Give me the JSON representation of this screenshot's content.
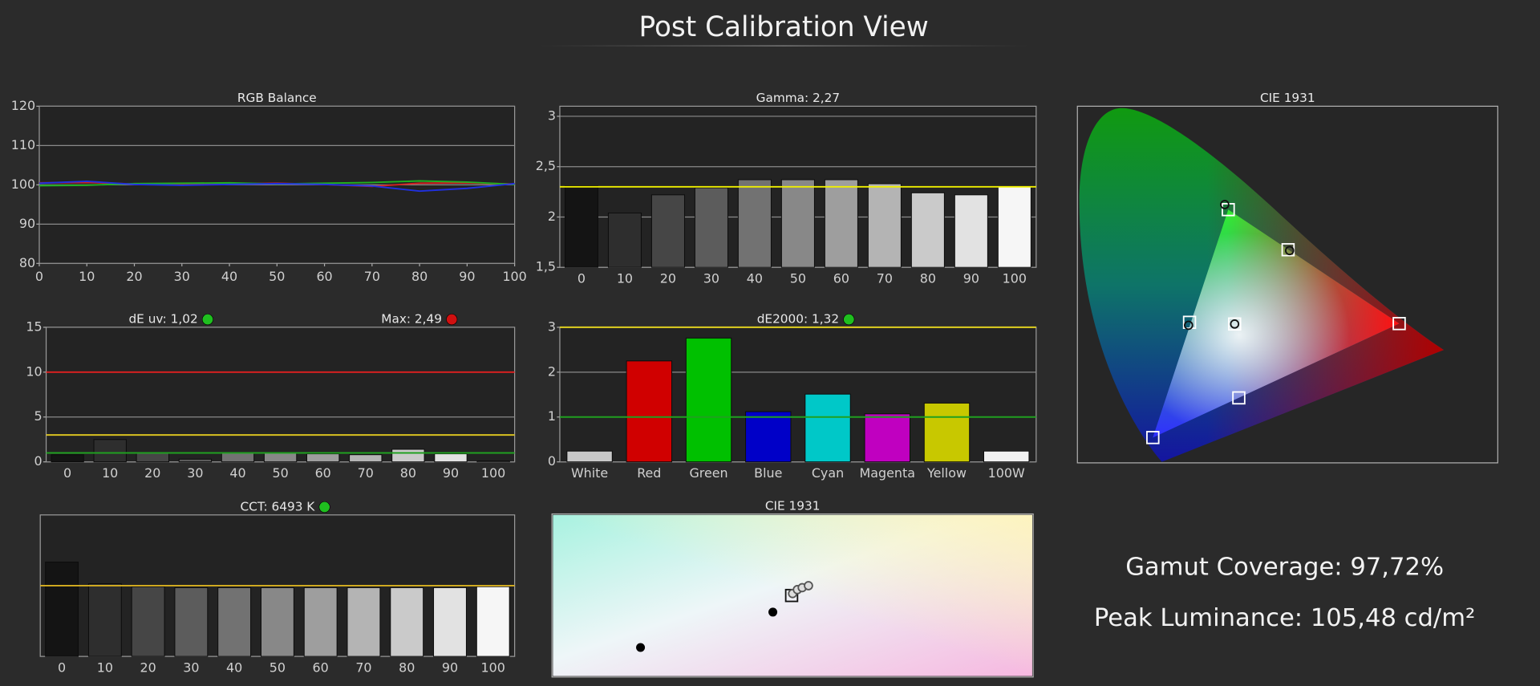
{
  "title": "Post Calibration View",
  "chart_data": [
    {
      "type": "line",
      "title": "RGB Balance",
      "x": [
        0,
        10,
        20,
        30,
        40,
        50,
        60,
        70,
        80,
        90,
        100
      ],
      "xlim": [
        0,
        100
      ],
      "xticks": [
        0,
        10,
        20,
        30,
        40,
        50,
        60,
        70,
        80,
        90,
        100
      ],
      "ylim": [
        80,
        120
      ],
      "yticks": [
        80,
        90,
        100,
        110,
        120
      ],
      "grid": true,
      "series": [
        {
          "color": "#d42020",
          "values": [
            100.5,
            100.6,
            100.2,
            100.1,
            100.2,
            100.4,
            100.1,
            99.6,
            100.4,
            100.5,
            100.2
          ]
        },
        {
          "color": "#20b020",
          "values": [
            99.8,
            99.9,
            100.3,
            100.4,
            100.5,
            100.2,
            100.4,
            100.6,
            101.0,
            100.7,
            100.1
          ]
        },
        {
          "color": "#2030e0",
          "values": [
            100.4,
            100.9,
            100.1,
            99.9,
            100.1,
            100.3,
            100.1,
            99.7,
            98.4,
            99.1,
            100.3
          ]
        }
      ]
    },
    {
      "type": "bar",
      "title": "Gamma: 2,27",
      "x": [
        0,
        10,
        20,
        30,
        40,
        50,
        60,
        70,
        80,
        90,
        100
      ],
      "xlim": [
        -5,
        105
      ],
      "values": [
        2.31,
        2.04,
        2.22,
        2.29,
        2.37,
        2.37,
        2.37,
        2.33,
        2.24,
        2.22,
        2.3
      ],
      "colors": [
        "#141414",
        "#2e2e2e",
        "#464646",
        "#5c5c5c",
        "#727272",
        "#888888",
        "#9e9e9e",
        "#b4b4b4",
        "#cacaca",
        "#e2e2e2",
        "#f6f6f6"
      ],
      "ylim": [
        1.5,
        3.1
      ],
      "yticks": [
        {
          "value": 1.5,
          "label": "1,5"
        },
        2,
        {
          "value": 2.5,
          "label": "2,5"
        },
        3
      ],
      "grid": true,
      "reference_lines": [
        {
          "value": 2.3,
          "color": "#f0f000"
        }
      ]
    },
    {
      "type": "bar",
      "title": "dE uv:  1,02",
      "title_status_color": "#1fbf1f",
      "annotation": "Max: 2,49",
      "annotation_status_color": "#d01010",
      "x": [
        0,
        10,
        20,
        30,
        40,
        50,
        60,
        70,
        80,
        90,
        100
      ],
      "xlim": [
        -5,
        105
      ],
      "values": [
        0.8,
        2.49,
        1.0,
        0.3,
        1.0,
        1.0,
        0.9,
        0.8,
        1.4,
        0.9,
        0.1
      ],
      "colors": [
        "#141414",
        "#2e2e2e",
        "#464646",
        "#5c5c5c",
        "#727272",
        "#888888",
        "#9e9e9e",
        "#b4b4b4",
        "#cacaca",
        "#e2e2e2",
        "#f6f6f6"
      ],
      "ylim": [
        0,
        15
      ],
      "yticks": [
        0,
        5,
        10,
        15
      ],
      "grid": true,
      "reference_lines": [
        {
          "value": 10,
          "color": "#e02020"
        },
        {
          "value": 3,
          "color": "#d8c020"
        },
        {
          "value": 1,
          "color": "#20a020"
        }
      ]
    },
    {
      "type": "bar",
      "title": "dE2000: 1,32",
      "title_status_color": "#1fbf1f",
      "categories": [
        "White",
        "Red",
        "Green",
        "Blue",
        "Cyan",
        "Magenta",
        "Yellow",
        "100W"
      ],
      "values": [
        0.24,
        2.25,
        2.76,
        1.12,
        1.51,
        1.07,
        1.31,
        0.24
      ],
      "colors": [
        "#c8c8c8",
        "#d00000",
        "#00c000",
        "#0000c8",
        "#00c8c8",
        "#c000c0",
        "#c8c800",
        "#f0f0f0"
      ],
      "ylim": [
        0,
        3
      ],
      "yticks": [
        0,
        1,
        2,
        3
      ],
      "grid": true,
      "reference_lines": [
        {
          "value": 3,
          "color": "#e0d020"
        },
        {
          "value": 1,
          "color": "#20a020"
        }
      ]
    },
    {
      "type": "bar",
      "title": "CCT: 6493 K",
      "title_status_color": "#1fbf1f",
      "x": [
        0,
        10,
        20,
        30,
        40,
        50,
        60,
        70,
        80,
        90,
        100
      ],
      "xlim": [
        -5,
        105
      ],
      "values": [
        7000,
        6542,
        6479,
        6458,
        6458,
        6458,
        6458,
        6458,
        6458,
        6458,
        6479
      ],
      "colors": [
        "#141414",
        "#2e2e2e",
        "#464646",
        "#5c5c5c",
        "#727272",
        "#888888",
        "#9e9e9e",
        "#b4b4b4",
        "#cacaca",
        "#e2e2e2",
        "#f6f6f6"
      ],
      "ylim": [
        5000,
        8000
      ],
      "reference_lines": [
        {
          "value": 6500,
          "color": "#d8b020"
        }
      ]
    },
    {
      "type": "scatter",
      "title": "CIE 1931",
      "xlim": [
        0,
        0.836
      ],
      "ylim": [
        0,
        0.845
      ],
      "gamut_triangle": true,
      "series": [
        {
          "marker": "square",
          "color": "#ffffff",
          "x": [
            0.64,
            0.3,
            0.15,
            0.3127,
            0.223,
            0.321,
            0.419
          ],
          "y": [
            0.33,
            0.6,
            0.06,
            0.329,
            0.333,
            0.154,
            0.505
          ]
        },
        {
          "marker": "circle",
          "color": "#111111",
          "x": [
            0.293,
            0.422,
            0.221,
            0.3127
          ],
          "y": [
            0.612,
            0.503,
            0.326,
            0.329
          ]
        }
      ]
    },
    {
      "type": "scatter",
      "title": "CIE 1931",
      "xlim": [
        0,
        1
      ],
      "ylim": [
        0,
        1
      ],
      "series": [
        {
          "marker": "dot",
          "color": "#000000",
          "x": [
            0.184,
            0.459
          ],
          "y": [
            0.181,
            0.398
          ]
        },
        {
          "marker": "square",
          "color": "#111111",
          "x": [
            0.498
          ],
          "y": [
            0.5
          ]
        },
        {
          "marker": "circle",
          "color": "#555555",
          "fill": "#dddddd",
          "x": [
            0.5,
            0.51,
            0.52,
            0.533
          ],
          "y": [
            0.512,
            0.536,
            0.548,
            0.56
          ]
        }
      ]
    }
  ],
  "stats": [
    "Gamut Coverage: 97,72%",
    "Peak Luminance: 105,48 cd/m²"
  ]
}
